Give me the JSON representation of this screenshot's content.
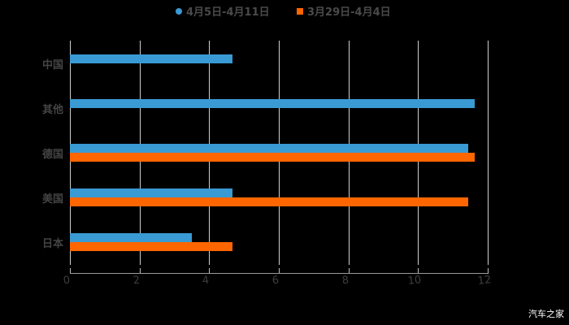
{
  "chart_data": {
    "type": "bar",
    "orientation": "horizontal",
    "title": "",
    "categories": [
      "中国",
      "其他",
      "德国",
      "美国",
      "日本"
    ],
    "series": [
      {
        "name": "4月5日-4月11日",
        "color": "#3a9ad4",
        "values": [
          4.66,
          11.63,
          11.44,
          4.67,
          3.5
        ]
      },
      {
        "name": "3月29日-4月4日",
        "color": "#ff6600",
        "values": [
          null,
          null,
          11.63,
          11.44,
          4.67
        ]
      }
    ],
    "xlabel": "",
    "ylabel": "",
    "xlim": [
      0,
      12
    ],
    "xticks": [
      "0",
      "2",
      "4",
      "6",
      "8",
      "10",
      "12"
    ],
    "grid": true,
    "legend_position": "top"
  },
  "legend": [
    {
      "label": "4月5日-4月11日",
      "color": "#3a9ad4"
    },
    {
      "label": "3月29日-4月4日",
      "color": "#ff6600"
    }
  ],
  "watermark": "汽车之家"
}
